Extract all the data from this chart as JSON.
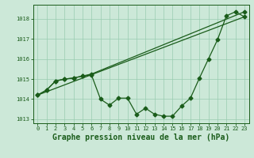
{
  "title": "Graphe pression niveau de la mer (hPa)",
  "background_color": "#cce8d8",
  "grid_color": "#99ccb0",
  "line_color": "#1a5c1a",
  "ylim": [
    1012.8,
    1018.7
  ],
  "yticks": [
    1013,
    1014,
    1015,
    1016,
    1017,
    1018
  ],
  "xlim": [
    -0.5,
    23.5
  ],
  "xticks": [
    0,
    1,
    2,
    3,
    4,
    5,
    6,
    7,
    8,
    9,
    10,
    11,
    12,
    13,
    14,
    15,
    16,
    17,
    18,
    19,
    20,
    21,
    22,
    23
  ],
  "series1_x": [
    0,
    1,
    2,
    3,
    4,
    5,
    6,
    7,
    8,
    9,
    10,
    11,
    12,
    13,
    14,
    15,
    16,
    17,
    18,
    19,
    20,
    21,
    22,
    23
  ],
  "series1_y": [
    1014.2,
    1014.45,
    1014.9,
    1015.0,
    1015.05,
    1015.15,
    1015.2,
    1014.0,
    1013.7,
    1014.05,
    1014.05,
    1013.25,
    1013.55,
    1013.25,
    1013.15,
    1013.15,
    1013.65,
    1014.05,
    1015.05,
    1016.0,
    1016.95,
    1018.15,
    1018.35,
    1018.1
  ],
  "series2_x": [
    0,
    1,
    2,
    3,
    4,
    5,
    6,
    23
  ],
  "series2_y": [
    1014.2,
    1014.45,
    1014.9,
    1015.0,
    1015.05,
    1015.15,
    1015.25,
    1018.35
  ],
  "series3_x": [
    0,
    23
  ],
  "series3_y": [
    1014.2,
    1018.1
  ],
  "marker": "D",
  "markersize": 2.5,
  "linewidth": 0.9,
  "title_fontsize": 7,
  "tick_fontsize": 5
}
